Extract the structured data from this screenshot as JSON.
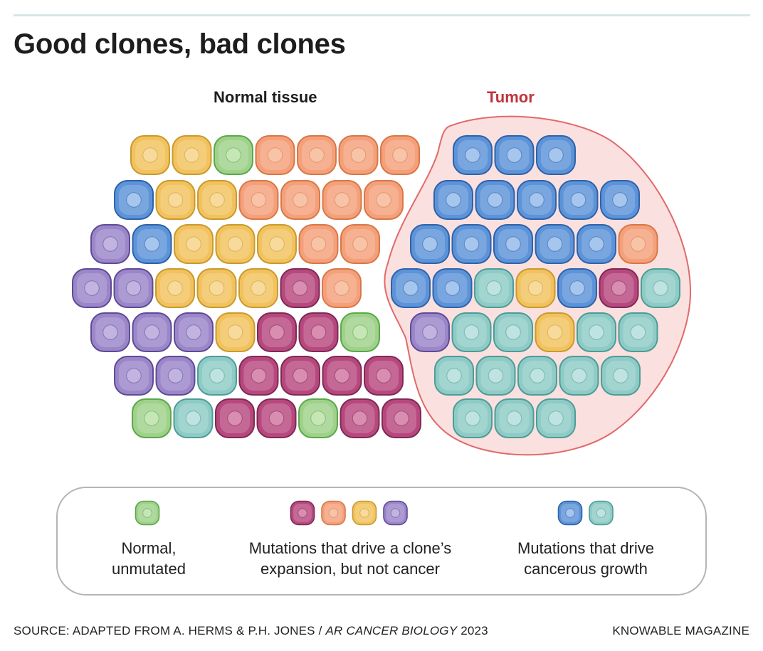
{
  "title": "Good clones, bad clones",
  "labels": {
    "normal_tissue": "Normal tissue",
    "tumor": "Tumor"
  },
  "cell_types": {
    "normal": {
      "fill": "#9fd18a",
      "stroke": "#5aa84a",
      "core": "#c6e6b6"
    },
    "magenta": {
      "fill": "#b7487e",
      "stroke": "#7e2a55",
      "core": "#d98db0"
    },
    "orange": {
      "fill": "#f4a07a",
      "stroke": "#d87848",
      "core": "#f8c4a8"
    },
    "yellow": {
      "fill": "#f2c25e",
      "stroke": "#c99a2e",
      "core": "#f7da9c"
    },
    "purple": {
      "fill": "#9a86c8",
      "stroke": "#5e4b96",
      "core": "#c1b4e0"
    },
    "blue": {
      "fill": "#5d93d8",
      "stroke": "#2f63a8",
      "core": "#a6c6ee"
    },
    "teal": {
      "fill": "#8ecbc6",
      "stroke": "#4e9c96",
      "core": "#bfe3e0"
    }
  },
  "tumor_region": {
    "fill": "#fbe0e0",
    "stroke": "#e06a6a"
  },
  "normal_rows": [
    [
      "yellow",
      "yellow",
      "normal",
      "orange",
      "orange",
      "orange",
      "orange"
    ],
    [
      "blue",
      "yellow",
      "yellow",
      "orange",
      "orange",
      "orange",
      "orange"
    ],
    [
      "purple",
      "blue",
      "yellow",
      "yellow",
      "yellow",
      "orange",
      "orange"
    ],
    [
      "purple",
      "purple",
      "yellow",
      "yellow",
      "yellow",
      "magenta",
      "orange"
    ],
    [
      "purple",
      "purple",
      "purple",
      "yellow",
      "magenta",
      "magenta",
      "normal"
    ],
    [
      "purple",
      "purple",
      "teal",
      "magenta",
      "magenta",
      "magenta",
      "magenta"
    ],
    [
      "normal",
      "teal",
      "magenta",
      "magenta",
      "normal",
      "magenta",
      "magenta"
    ]
  ],
  "tumor_rows": [
    [
      "blue",
      "blue",
      "blue"
    ],
    [
      "blue",
      "blue",
      "blue",
      "blue",
      "blue"
    ],
    [
      "blue",
      "blue",
      "blue",
      "blue",
      "blue",
      "orange"
    ],
    [
      "blue",
      "blue",
      "teal",
      "yellow",
      "blue",
      "magenta",
      "teal"
    ],
    [
      "purple",
      "teal",
      "teal",
      "yellow",
      "teal",
      "teal"
    ],
    [
      "teal",
      "teal",
      "teal",
      "teal",
      "teal"
    ],
    [
      "teal",
      "teal",
      "teal"
    ]
  ],
  "legend": {
    "groups": [
      {
        "caption": "Normal,\nunmutated",
        "swatches": [
          "normal"
        ]
      },
      {
        "caption": "Mutations that drive a clone’s\nexpansion, but not cancer",
        "swatches": [
          "magenta",
          "orange",
          "yellow",
          "purple"
        ]
      },
      {
        "caption": "Mutations that drive\ncancerous growth",
        "swatches": [
          "blue",
          "teal"
        ]
      }
    ]
  },
  "footer": {
    "source_prefix": "SOURCE: ADAPTED FROM A. HERMS & P.H. JONES / ",
    "source_journal": "AR CANCER BIOLOGY",
    "source_year": " 2023",
    "brand": "KNOWABLE MAGAZINE"
  }
}
